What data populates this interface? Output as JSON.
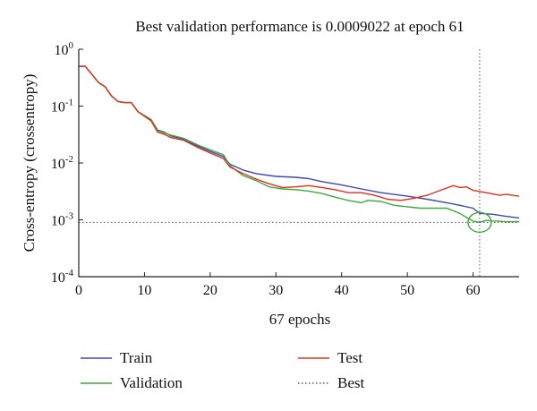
{
  "chart_data": {
    "type": "line",
    "title": "Best validation performance is 0.0009022 at epoch 61",
    "xlabel": "67 epochs",
    "ylabel": "Cross-entropy (crossentropy)",
    "xlim": [
      0,
      67
    ],
    "ylim": [
      0.0001,
      1
    ],
    "y_scale": "log",
    "x_ticks": [
      0,
      10,
      20,
      30,
      40,
      50,
      60
    ],
    "x_tick_labels": [
      "0",
      "10",
      "20",
      "30",
      "40",
      "50",
      "60"
    ],
    "y_ticks": [
      1,
      0.1,
      0.01,
      0.001,
      0.0001
    ],
    "y_tick_labels": [
      {
        "base": "10",
        "exp": "0"
      },
      {
        "base": "10",
        "exp": "-1"
      },
      {
        "base": "10",
        "exp": "-2"
      },
      {
        "base": "10",
        "exp": "-3"
      },
      {
        "base": "10",
        "exp": "-4"
      }
    ],
    "grid": false,
    "legend_position": "bottom",
    "best": {
      "epoch": 61,
      "value": 0.0009022
    },
    "series": [
      {
        "name": "Train",
        "color": "#3b48b5",
        "points": [
          [
            0,
            0.5
          ],
          [
            1,
            0.5
          ],
          [
            3,
            0.26
          ],
          [
            4,
            0.22
          ],
          [
            5,
            0.15
          ],
          [
            6,
            0.12
          ],
          [
            7,
            0.115
          ],
          [
            8,
            0.115
          ],
          [
            9,
            0.08
          ],
          [
            11,
            0.058
          ],
          [
            12,
            0.038
          ],
          [
            13,
            0.035
          ],
          [
            14,
            0.03
          ],
          [
            16,
            0.026
          ],
          [
            18,
            0.02
          ],
          [
            20,
            0.016
          ],
          [
            22,
            0.013
          ],
          [
            23,
            0.0095
          ],
          [
            25,
            0.0075
          ],
          [
            27,
            0.0065
          ],
          [
            30,
            0.0058
          ],
          [
            33,
            0.0056
          ],
          [
            35,
            0.0053
          ],
          [
            37,
            0.0047
          ],
          [
            40,
            0.0041
          ],
          [
            43,
            0.0035
          ],
          [
            46,
            0.003
          ],
          [
            50,
            0.0026
          ],
          [
            53,
            0.0023
          ],
          [
            56,
            0.002
          ],
          [
            58,
            0.0018
          ],
          [
            60,
            0.0016
          ],
          [
            61,
            0.0013
          ],
          [
            63,
            0.00125
          ],
          [
            65,
            0.00115
          ],
          [
            67,
            0.00108
          ]
        ]
      },
      {
        "name": "Validation",
        "color": "#3daa3d",
        "points": [
          [
            0,
            0.5
          ],
          [
            1,
            0.5
          ],
          [
            3,
            0.26
          ],
          [
            4,
            0.22
          ],
          [
            5,
            0.15
          ],
          [
            6,
            0.12
          ],
          [
            7,
            0.115
          ],
          [
            8,
            0.115
          ],
          [
            9,
            0.08
          ],
          [
            11,
            0.058
          ],
          [
            12,
            0.037
          ],
          [
            13,
            0.034
          ],
          [
            14,
            0.031
          ],
          [
            16,
            0.027
          ],
          [
            18,
            0.021
          ],
          [
            20,
            0.017
          ],
          [
            22,
            0.014
          ],
          [
            23,
            0.009
          ],
          [
            25,
            0.006
          ],
          [
            27,
            0.0049
          ],
          [
            29,
            0.0038
          ],
          [
            31,
            0.0035
          ],
          [
            33,
            0.0034
          ],
          [
            35,
            0.0032
          ],
          [
            37,
            0.0029
          ],
          [
            39,
            0.0025
          ],
          [
            41,
            0.0022
          ],
          [
            43,
            0.002
          ],
          [
            44,
            0.0022
          ],
          [
            46,
            0.0021
          ],
          [
            48,
            0.0018
          ],
          [
            50,
            0.0017
          ],
          [
            52,
            0.0016
          ],
          [
            54,
            0.0016
          ],
          [
            56,
            0.0016
          ],
          [
            58,
            0.0013
          ],
          [
            59,
            0.0011
          ],
          [
            60,
            0.00095
          ],
          [
            61,
            0.0009022
          ],
          [
            62,
            0.00098
          ],
          [
            63,
            0.00095
          ],
          [
            64,
            0.00095
          ],
          [
            65,
            0.00092
          ],
          [
            67,
            0.00093
          ]
        ]
      },
      {
        "name": "Test",
        "color": "#e0311c",
        "points": [
          [
            0,
            0.5
          ],
          [
            1,
            0.5
          ],
          [
            3,
            0.26
          ],
          [
            4,
            0.22
          ],
          [
            5,
            0.15
          ],
          [
            6,
            0.12
          ],
          [
            7,
            0.115
          ],
          [
            8,
            0.115
          ],
          [
            9,
            0.08
          ],
          [
            11,
            0.055
          ],
          [
            12,
            0.035
          ],
          [
            13,
            0.032
          ],
          [
            14,
            0.028
          ],
          [
            16,
            0.025
          ],
          [
            18,
            0.019
          ],
          [
            20,
            0.015
          ],
          [
            22,
            0.012
          ],
          [
            23,
            0.0085
          ],
          [
            25,
            0.0065
          ],
          [
            27,
            0.0052
          ],
          [
            29,
            0.0043
          ],
          [
            31,
            0.0037
          ],
          [
            33,
            0.0038
          ],
          [
            35,
            0.004
          ],
          [
            37,
            0.0037
          ],
          [
            39,
            0.0034
          ],
          [
            41,
            0.003
          ],
          [
            43,
            0.003
          ],
          [
            45,
            0.0027
          ],
          [
            47,
            0.0023
          ],
          [
            49,
            0.0022
          ],
          [
            51,
            0.0024
          ],
          [
            53,
            0.0027
          ],
          [
            55,
            0.0033
          ],
          [
            57,
            0.004
          ],
          [
            58,
            0.0037
          ],
          [
            59,
            0.0038
          ],
          [
            60,
            0.0033
          ],
          [
            62,
            0.003
          ],
          [
            64,
            0.0027
          ],
          [
            65,
            0.0028
          ],
          [
            67,
            0.0026
          ]
        ]
      }
    ],
    "legend": [
      {
        "label": "Train",
        "style": "solid",
        "color": "#3b48b5"
      },
      {
        "label": "Test",
        "style": "solid",
        "color": "#e0311c"
      },
      {
        "label": "Validation",
        "style": "solid",
        "color": "#3daa3d"
      },
      {
        "label": "Best",
        "style": "dotted",
        "color": "#3daa3d"
      }
    ]
  }
}
